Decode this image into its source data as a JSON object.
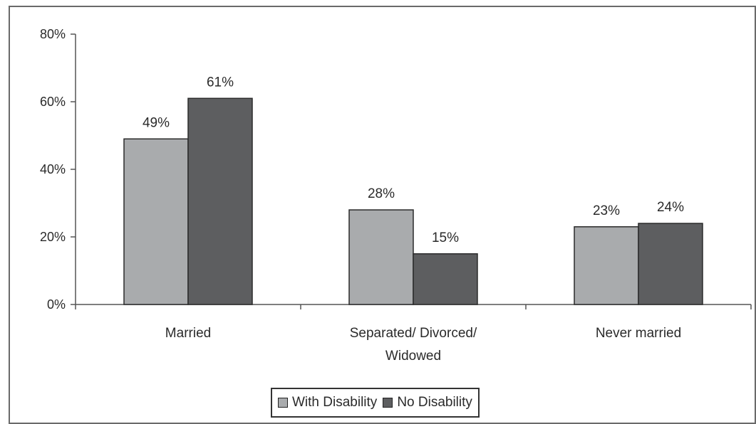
{
  "chart_data": {
    "type": "bar",
    "categories": [
      "Married",
      "Separated/ Divorced/ Widowed",
      "Never married"
    ],
    "category_lines": [
      [
        "Married"
      ],
      [
        "Separated/ Divorced/",
        "Widowed"
      ],
      [
        "Never married"
      ]
    ],
    "series": [
      {
        "name": "With Disability",
        "values": [
          49,
          28,
          23
        ],
        "labels": [
          "49%",
          "28%",
          "23%"
        ],
        "color": "#a9abad"
      },
      {
        "name": "No Disability",
        "values": [
          61,
          15,
          24
        ],
        "labels": [
          "61%",
          "15%",
          "24%"
        ],
        "color": "#5d5e60"
      }
    ],
    "y_ticks": [
      0,
      20,
      40,
      60,
      80
    ],
    "y_tick_labels": [
      "0%",
      "20%",
      "40%",
      "60%",
      "80%"
    ],
    "ylim": [
      0,
      80
    ],
    "title": "",
    "xlabel": "",
    "ylabel": "",
    "grid": false,
    "legend": "bottom"
  }
}
